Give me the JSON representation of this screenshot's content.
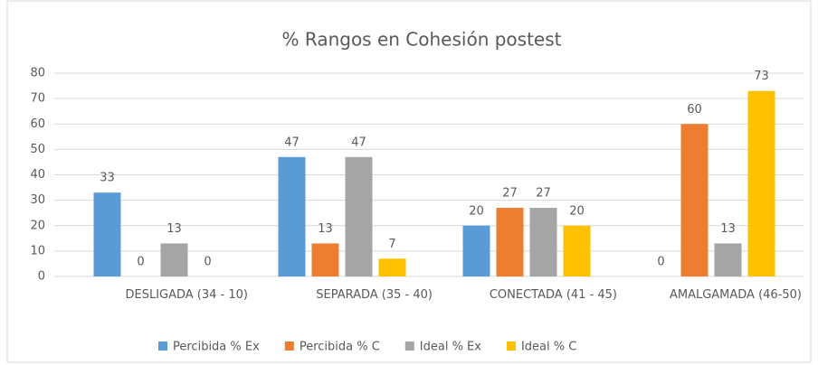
{
  "chart_data": {
    "type": "bar",
    "title": "% Rangos en Cohesión postest",
    "categories": [
      "DESLIGADA (34 - 10)",
      "SEPARADA (35 - 40)",
      "CONECTADA (41 - 45)",
      "AMALGAMADA (46-50)"
    ],
    "series": [
      {
        "name": "Percibida % Ex",
        "color": "#5b9bd5",
        "values": [
          33,
          47,
          20,
          0
        ]
      },
      {
        "name": "Percibida % C",
        "color": "#ed7d31",
        "values": [
          0,
          13,
          27,
          60
        ]
      },
      {
        "name": "Ideal % Ex",
        "color": "#a5a5a5",
        "values": [
          13,
          47,
          27,
          13
        ]
      },
      {
        "name": "Ideal % C",
        "color": "#ffc000",
        "values": [
          0,
          7,
          20,
          73
        ]
      }
    ],
    "ylim": [
      0,
      80
    ],
    "yticks": [
      0,
      10,
      20,
      30,
      40,
      50,
      60,
      70,
      80
    ],
    "grid": true,
    "legend": "bottom"
  }
}
